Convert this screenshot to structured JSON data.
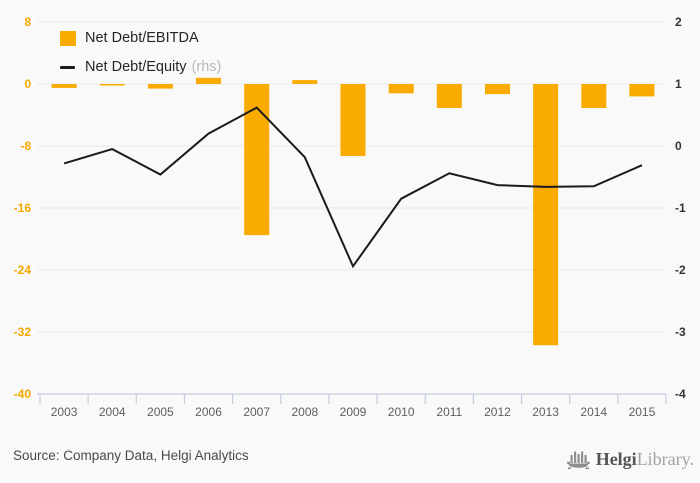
{
  "legend": {
    "bar_label": "Net Debt/EBITDA",
    "line_label": "Net Debt/Equity",
    "line_suffix": "(rhs)"
  },
  "footer": {
    "source": "Source: Company Data, Helgi Analytics",
    "logo_bold": "Helgi",
    "logo_light": "Library."
  },
  "colors": {
    "bar": "#F9AB00",
    "line": "#1A1A1A",
    "left_axis_text": "#F5A800",
    "right_axis_text": "#333333",
    "gridline": "#E9E9E9",
    "axis_line": "#C7CDE2",
    "year_text": "#5F5F5F",
    "background": "#F9F9F9"
  },
  "chart_data": {
    "type": "bar",
    "categories": [
      "2003",
      "2004",
      "2005",
      "2006",
      "2007",
      "2008",
      "2009",
      "2010",
      "2011",
      "2012",
      "2013",
      "2014",
      "2015"
    ],
    "series": [
      {
        "name": "Net Debt/EBITDA",
        "type": "bar",
        "axis": "left",
        "values": [
          -0.5,
          -0.2,
          -0.6,
          0.8,
          -19.5,
          0.5,
          -9.3,
          -1.2,
          -3.1,
          -1.3,
          -33.7,
          -3.1,
          -1.6
        ]
      },
      {
        "name": "Net Debt/Equity (rhs)",
        "type": "line",
        "axis": "right",
        "values": [
          -0.28,
          -0.05,
          -0.46,
          0.2,
          0.62,
          -0.18,
          -1.94,
          -0.85,
          -0.44,
          -0.63,
          -0.66,
          -0.65,
          -0.31
        ]
      }
    ],
    "left_axis": {
      "min": -40,
      "max": 8,
      "ticks": [
        8,
        0,
        -8,
        -16,
        -24,
        -32,
        -40
      ]
    },
    "right_axis": {
      "min": -4,
      "max": 2,
      "ticks": [
        2,
        1,
        0,
        -1,
        -2,
        -3,
        -4
      ]
    },
    "grid": true,
    "legend_position": "top-left"
  }
}
